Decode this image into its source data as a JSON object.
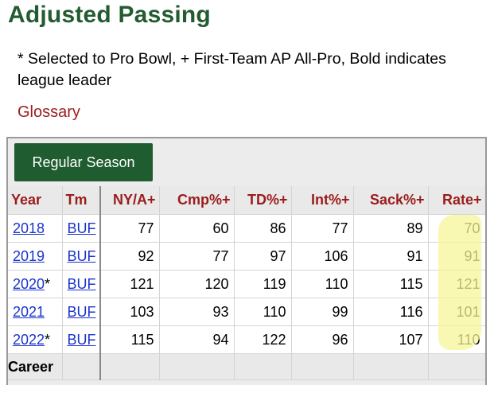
{
  "page": {
    "title": "Adjusted Passing",
    "note": "* Selected to Pro Bowl, + First-Team AP All-Pro, Bold indicates league leader",
    "glossary": "Glossary",
    "highlight_color": "#f6f59a",
    "title_color": "#245c32",
    "header_color": "#9b1c1c",
    "link_color": "#1a33cc"
  },
  "tab": {
    "label": "Regular Season",
    "color": "#1f5c30"
  },
  "table": {
    "headers": [
      "Year",
      "Tm",
      "NY/A+",
      "Cmp%+",
      "TD%+",
      "Int%+",
      "Sack%+",
      "Rate+"
    ],
    "rows": [
      {
        "year": "2018",
        "mark": "",
        "team": "BUF",
        "nya": "77",
        "cmp": "60",
        "td": "86",
        "int": "77",
        "sack": "89",
        "rate": "70"
      },
      {
        "year": "2019",
        "mark": "",
        "team": "BUF",
        "nya": "92",
        "cmp": "77",
        "td": "97",
        "int": "106",
        "sack": "91",
        "rate": "91"
      },
      {
        "year": "2020",
        "mark": "*",
        "team": "BUF",
        "nya": "121",
        "cmp": "120",
        "td": "119",
        "int": "110",
        "sack": "115",
        "rate": "121"
      },
      {
        "year": "2021",
        "mark": "",
        "team": "BUF",
        "nya": "103",
        "cmp": "93",
        "td": "110",
        "int": "99",
        "sack": "116",
        "rate": "101"
      },
      {
        "year": "2022",
        "mark": "*",
        "team": "BUF",
        "nya": "115",
        "cmp": "94",
        "td": "122",
        "int": "96",
        "sack": "107",
        "rate": "110"
      }
    ],
    "career_label": "Career"
  }
}
